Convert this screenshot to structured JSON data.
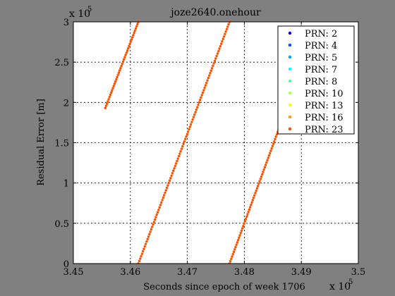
{
  "chart_data": {
    "type": "scatter",
    "title": "joze2640.onehour",
    "xlabel": "Seconds since epoch of week 1706",
    "ylabel": "Residual Error [m]",
    "x_exponent_label": "x 10",
    "x_exponent_power": "5",
    "y_exponent_label": "x 10",
    "y_exponent_power": "5",
    "xlim": [
      3.45,
      3.5
    ],
    "ylim": [
      0,
      3
    ],
    "x_ticks": [
      3.45,
      3.46,
      3.47,
      3.48,
      3.49,
      3.5
    ],
    "x_tick_labels": [
      "3.45",
      "3.46",
      "3.47",
      "3.48",
      "3.49",
      "3.5"
    ],
    "y_ticks": [
      0,
      0.5,
      1,
      1.5,
      2,
      2.5,
      3
    ],
    "y_tick_labels": [
      "0",
      "0.5",
      "1",
      "1.5",
      "2",
      "2.5",
      "3"
    ],
    "grid": true,
    "legend_position": "top-right",
    "series": [
      {
        "name": "PRN: 2",
        "color": "#0000ff",
        "points": []
      },
      {
        "name": "PRN: 4",
        "color": "#0050ff",
        "points": []
      },
      {
        "name": "PRN: 5",
        "color": "#00a0ff",
        "points": []
      },
      {
        "name": "PRN: 7",
        "color": "#00ffff",
        "points": []
      },
      {
        "name": "PRN: 8",
        "color": "#50ffa0",
        "points": []
      },
      {
        "name": "PRN: 10",
        "color": "#a0ff50",
        "points": []
      },
      {
        "name": "PRN: 13",
        "color": "#ffff00",
        "points": []
      },
      {
        "name": "PRN: 16",
        "color": "#ffa000",
        "points": []
      },
      {
        "name": "PRN: 23",
        "color": "#ff5000",
        "segments": [
          {
            "x_start": 3.4556,
            "y_start": 1.93,
            "x_end": 3.4614,
            "y_end": 3.0,
            "points": 40
          },
          {
            "x_start": 3.4614,
            "y_start": 0.0,
            "x_end": 3.4774,
            "y_end": 3.0,
            "points": 100
          },
          {
            "x_start": 3.4774,
            "y_start": 0.0,
            "x_end": 3.4863,
            "y_end": 1.72,
            "points": 60
          }
        ]
      }
    ]
  }
}
